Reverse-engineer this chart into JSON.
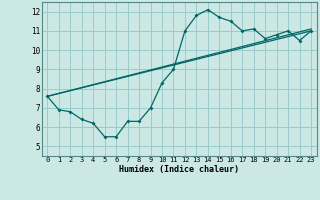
{
  "title": "",
  "xlabel": "Humidex (Indice chaleur)",
  "ylabel": "",
  "background_color": "#cce8e4",
  "grid_color": "#99cccc",
  "line_color": "#006666",
  "xlim": [
    -0.5,
    23.5
  ],
  "ylim": [
    4.5,
    12.5
  ],
  "xticks": [
    0,
    1,
    2,
    3,
    4,
    5,
    6,
    7,
    8,
    9,
    10,
    11,
    12,
    13,
    14,
    15,
    16,
    17,
    18,
    19,
    20,
    21,
    22,
    23
  ],
  "yticks": [
    5,
    6,
    7,
    8,
    9,
    10,
    11,
    12
  ],
  "series1_x": [
    0,
    1,
    2,
    3,
    4,
    5,
    6,
    7,
    8,
    9,
    10,
    11,
    12,
    13,
    14,
    15,
    16,
    17,
    18,
    19,
    20,
    21,
    22,
    23
  ],
  "series1_y": [
    7.6,
    6.9,
    6.8,
    6.4,
    6.2,
    5.5,
    5.5,
    6.3,
    6.3,
    7.0,
    8.3,
    9.0,
    11.0,
    11.8,
    12.1,
    11.7,
    11.5,
    11.0,
    11.1,
    10.6,
    10.8,
    11.0,
    10.5,
    11.0
  ],
  "series2_x": [
    0,
    23
  ],
  "series2_y": [
    7.6,
    11.0
  ],
  "series3_x": [
    0,
    23
  ],
  "series3_y": [
    7.6,
    11.1
  ]
}
